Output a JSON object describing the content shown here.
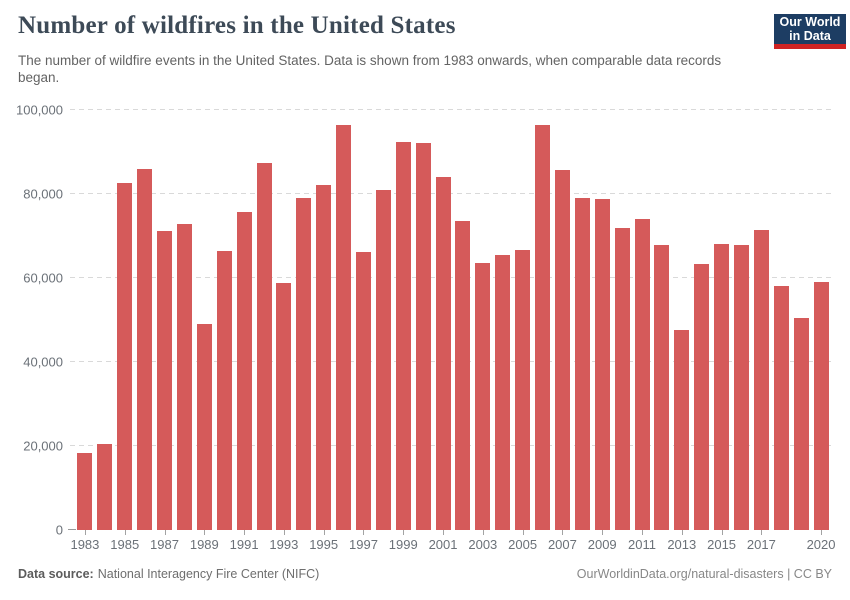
{
  "header": {
    "title": "Number of wildfires in the United States",
    "subtitle": "The number of wildfire events in the United States. Data is shown from 1983 onwards, when comparable data records began.",
    "logo_line1": "Our World",
    "logo_line2": "in Data"
  },
  "chart_data": {
    "type": "bar",
    "title": "Number of wildfires in the United States",
    "xlabel": "",
    "ylabel": "",
    "categories": [
      1983,
      1984,
      1985,
      1986,
      1987,
      1988,
      1989,
      1990,
      1991,
      1992,
      1993,
      1994,
      1995,
      1996,
      1997,
      1998,
      1999,
      2000,
      2001,
      2002,
      2003,
      2004,
      2005,
      2006,
      2007,
      2008,
      2009,
      2010,
      2011,
      2012,
      2013,
      2014,
      2015,
      2016,
      2017,
      2018,
      2019,
      2020
    ],
    "values": [
      18229,
      20493,
      82591,
      85907,
      71300,
      72750,
      48949,
      66481,
      75754,
      87394,
      58810,
      79107,
      82234,
      96363,
      66196,
      81043,
      92487,
      92250,
      84079,
      73457,
      63629,
      65461,
      66753,
      96385,
      85705,
      78979,
      78792,
      71971,
      74126,
      67774,
      47579,
      63312,
      68151,
      67743,
      71499,
      58083,
      50477,
      58950
    ],
    "ylim": [
      0,
      100000
    ],
    "yticks": [
      0,
      20000,
      40000,
      60000,
      80000,
      100000
    ],
    "ytick_labels": [
      "0",
      "20,000",
      "40,000",
      "60,000",
      "80,000",
      "100,000"
    ],
    "xtick_years": [
      1983,
      1985,
      1987,
      1989,
      1991,
      1993,
      1995,
      1997,
      1999,
      2001,
      2003,
      2005,
      2007,
      2009,
      2011,
      2013,
      2015,
      2017,
      2020
    ],
    "bar_color": "#d55a5a",
    "grid": "horizontal-dashed",
    "legend": "none"
  },
  "footer": {
    "source_label": "Data source:",
    "source_value": "National Interagency Fire Center (NIFC)",
    "credit": "OurWorldinData.org/natural-disasters | CC BY"
  },
  "colors": {
    "bar": "#d55a5a",
    "logo_background": "#1d3d63",
    "logo_accent": "#cf2323",
    "title_text": "#3d4a57",
    "axis_text": "#6b7178",
    "gridline": "#d9d9d9"
  }
}
